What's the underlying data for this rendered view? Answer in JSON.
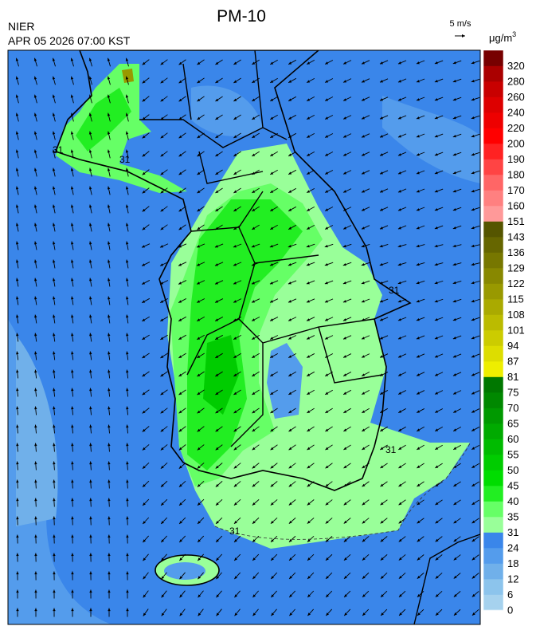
{
  "header": {
    "title": "PM-10",
    "agency": "NIER",
    "datetime": "APR 05 2026 07:00 KST",
    "wind_scale": "5 m/s"
  },
  "colorbar": {
    "unit": {
      "base": "μg/m",
      "sup": "3"
    },
    "levels": [
      0,
      6,
      12,
      18,
      24,
      31,
      35,
      40,
      45,
      50,
      55,
      60,
      65,
      70,
      75,
      81,
      87,
      94,
      101,
      108,
      115,
      122,
      129,
      136,
      143,
      151,
      160,
      170,
      180,
      190,
      200,
      220,
      240,
      260,
      280,
      320
    ],
    "colors": [
      "#a6d2ee",
      "#8cc4ec",
      "#70b0ea",
      "#549cec",
      "#3a86ea",
      "#99ff99",
      "#66ff66",
      "#22ee22",
      "#00dd00",
      "#00cc00",
      "#00bb00",
      "#00aa00",
      "#009900",
      "#008800",
      "#007700",
      "#eeee00",
      "#dddd00",
      "#cccc00",
      "#bbbb00",
      "#aaaa00",
      "#999900",
      "#888800",
      "#777700",
      "#666600",
      "#555500",
      "#ff9999",
      "#ff8080",
      "#ff6666",
      "#ff4444",
      "#ff2222",
      "#ff0000",
      "#ee0000",
      "#dd0000",
      "#c80000",
      "#aa0000",
      "#770000"
    ]
  },
  "map": {
    "contour_labels": [
      "31",
      "31",
      "31",
      "31",
      "31"
    ]
  }
}
